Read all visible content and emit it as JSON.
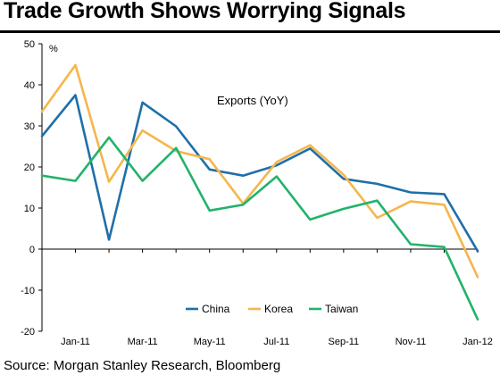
{
  "title": "Trade Growth Shows Worrying Signals",
  "source": "Source: Morgan Stanley Research, Bloomberg",
  "chart_data": {
    "type": "line",
    "title": "",
    "annotation": "Exports (YoY)",
    "ylabel": "%",
    "ylim": [
      -20,
      50
    ],
    "yticks": [
      -20,
      -10,
      0,
      10,
      20,
      30,
      40,
      50
    ],
    "x": [
      "Dec-10",
      "Jan-11",
      "Feb-11",
      "Mar-11",
      "Apr-11",
      "May-11",
      "Jun-11",
      "Jul-11",
      "Aug-11",
      "Sep-11",
      "Oct-11",
      "Nov-11",
      "Dec-11",
      "Jan-12"
    ],
    "xtick_labels": [
      "Jan-11",
      "Mar-11",
      "May-11",
      "Jul-11",
      "Sep-11",
      "Nov-11",
      "Jan-12"
    ],
    "grid": false,
    "legend_position": "bottom-center",
    "series": [
      {
        "name": "China",
        "color": "#1f6fa8",
        "values": [
          27.5,
          37.5,
          2.3,
          35.7,
          29.9,
          19.4,
          17.9,
          20.4,
          24.5,
          17.1,
          15.9,
          13.8,
          13.4,
          -0.5
        ]
      },
      {
        "name": "Korea",
        "color": "#f5b64c",
        "values": [
          33.5,
          44.8,
          16.4,
          28.9,
          23.9,
          21.9,
          11.1,
          21.2,
          25.3,
          18.1,
          7.6,
          11.6,
          10.8,
          -6.8
        ]
      },
      {
        "name": "Taiwan",
        "color": "#22b36b",
        "values": [
          17.9,
          16.6,
          27.2,
          16.6,
          24.6,
          9.4,
          10.8,
          17.7,
          7.2,
          9.8,
          11.8,
          1.2,
          0.5,
          -17.1
        ]
      }
    ]
  }
}
